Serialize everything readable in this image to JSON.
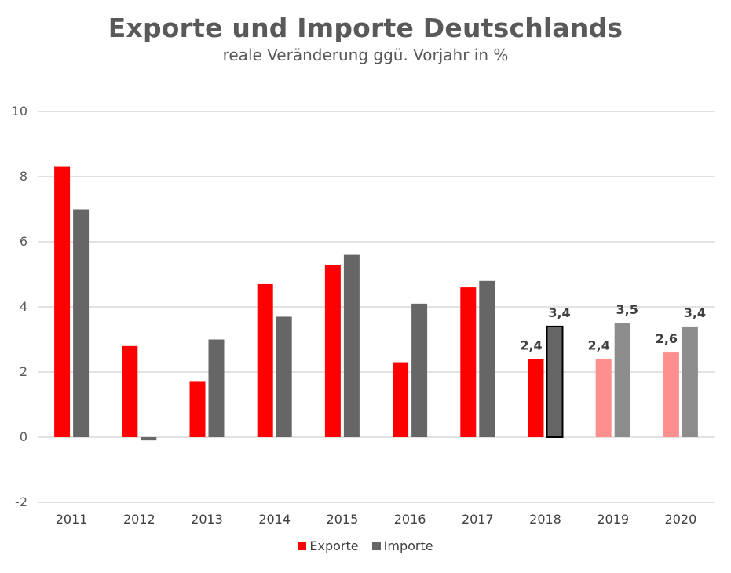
{
  "chart_data": {
    "type": "bar",
    "title": "Exporte und Importe Deutschlands",
    "subtitle": "reale Veränderung ggü. Vorjahr in %",
    "categories": [
      "2011",
      "2012",
      "2013",
      "2014",
      "2015",
      "2016",
      "2017",
      "2018",
      "2019",
      "2020"
    ],
    "series": [
      {
        "name": "Exporte",
        "color": "#ff0000",
        "forecast_color": "#ff8f8f",
        "values": [
          8.3,
          2.8,
          1.7,
          4.7,
          5.3,
          2.3,
          4.6,
          2.4,
          2.4,
          2.6
        ]
      },
      {
        "name": "Importe",
        "color": "#666666",
        "forecast_color": "#8c8c8c",
        "values": [
          7.0,
          -0.1,
          3.0,
          3.7,
          5.6,
          4.1,
          4.8,
          3.4,
          3.5,
          3.4
        ]
      }
    ],
    "data_labels": [
      {
        "series": "Exporte",
        "category": "2018",
        "text": "2,4"
      },
      {
        "series": "Importe",
        "category": "2018",
        "text": "3,4"
      },
      {
        "series": "Exporte",
        "category": "2019",
        "text": "2,4"
      },
      {
        "series": "Importe",
        "category": "2019",
        "text": "3,5"
      },
      {
        "series": "Exporte",
        "category": "2020",
        "text": "2,6"
      },
      {
        "series": "Importe",
        "category": "2020",
        "text": "3,4"
      }
    ],
    "highlighted": {
      "series": "Importe",
      "category": "2018"
    },
    "forecast_categories": [
      "2019",
      "2020"
    ],
    "ylim": [
      -2,
      10
    ],
    "yticks": [
      -2,
      0,
      2,
      4,
      6,
      8,
      10
    ],
    "ytick_labels": [
      "-2",
      "0",
      "2",
      "4",
      "6",
      "8",
      "10"
    ],
    "grid": true,
    "legend_position": "bottom",
    "xlabel": "",
    "ylabel": ""
  }
}
